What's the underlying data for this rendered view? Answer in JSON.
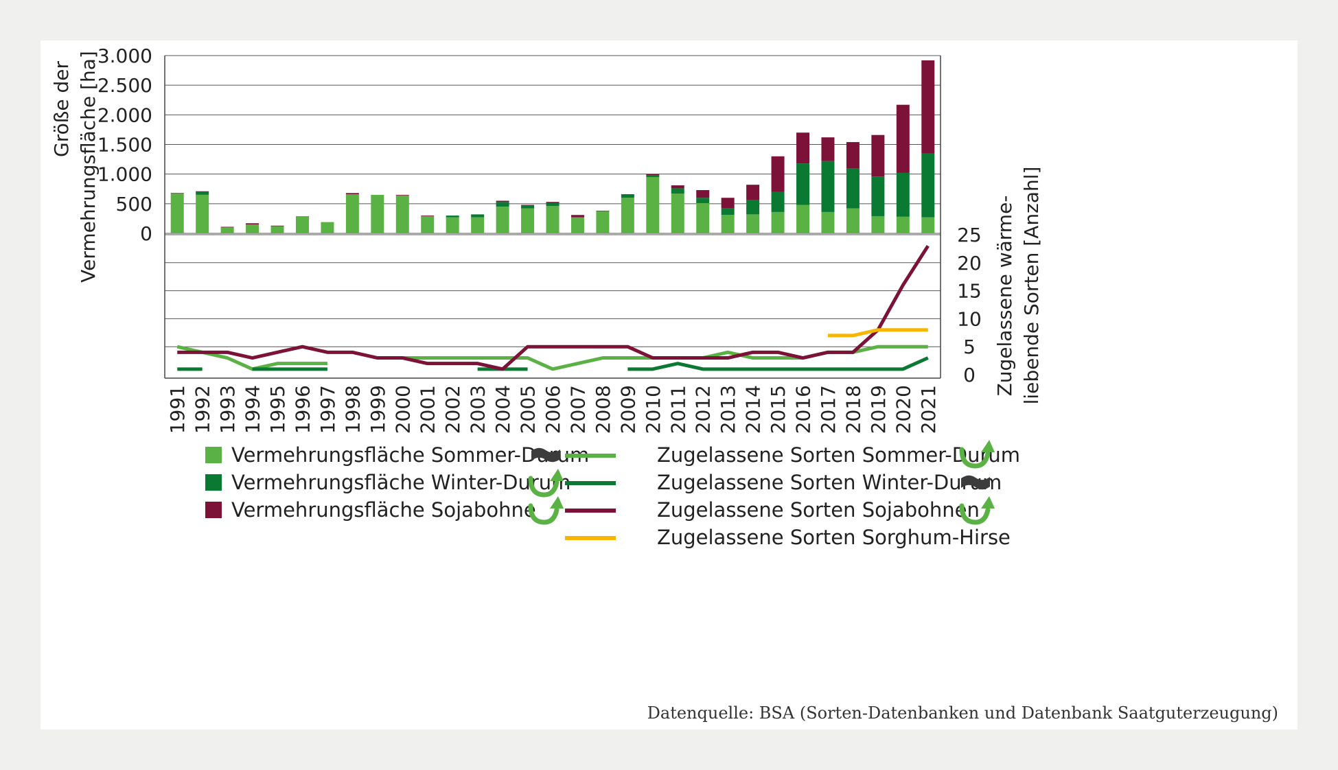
{
  "chart_data": {
    "type": "bar+line",
    "years": [
      "1991",
      "1992",
      "1993",
      "1994",
      "1995",
      "1996",
      "1997",
      "1998",
      "1999",
      "2000",
      "2001",
      "2002",
      "2003",
      "2004",
      "2005",
      "2006",
      "2007",
      "2008",
      "2009",
      "2010",
      "2011",
      "2012",
      "2013",
      "2014",
      "2015",
      "2016",
      "2017",
      "2018",
      "2019",
      "2020",
      "2021"
    ],
    "bars": {
      "ylabel_line1": "Größe der",
      "ylabel_line2": "Vermehrungsfläche [ha]",
      "ylim": [
        0,
        3000
      ],
      "ticks": [
        0,
        500,
        1000,
        1500,
        2000,
        2500,
        3000
      ],
      "tick_labels": [
        "0",
        "500",
        "1.000",
        "1.500",
        "2.000",
        "2.500",
        "3.000"
      ],
      "series": [
        {
          "name": "Vermehrungsfläche Sommer-Durum",
          "color": "#5bb244",
          "values": [
            670,
            650,
            100,
            150,
            120,
            290,
            190,
            660,
            650,
            640,
            290,
            270,
            270,
            450,
            420,
            460,
            270,
            370,
            600,
            950,
            670,
            510,
            310,
            320,
            360,
            480,
            360,
            420,
            290,
            280,
            270
          ]
        },
        {
          "name": "Vermehrungsfläche Winter-Durum",
          "color": "#0a7a32",
          "values": [
            0,
            50,
            0,
            0,
            0,
            0,
            0,
            0,
            0,
            0,
            0,
            30,
            50,
            80,
            50,
            50,
            0,
            0,
            50,
            30,
            90,
            90,
            110,
            240,
            340,
            700,
            860,
            680,
            670,
            740,
            1080
          ]
        },
        {
          "name": "Vermehrungsfläche Sojabohne",
          "color": "#7d1239",
          "values": [
            10,
            10,
            10,
            20,
            10,
            0,
            0,
            20,
            0,
            10,
            10,
            0,
            0,
            20,
            10,
            20,
            40,
            10,
            10,
            20,
            50,
            130,
            180,
            260,
            600,
            520,
            400,
            440,
            700,
            1150,
            1570
          ]
        }
      ]
    },
    "lines": {
      "ylabel_line1": "Zugelassene wärme-",
      "ylabel_line2": "liebende Sorten [Anzahl]",
      "ylim": [
        0,
        25
      ],
      "ticks": [
        0,
        5,
        10,
        15,
        20,
        25
      ],
      "series": [
        {
          "name": "Zugelassene Sorten Sommer-Durum",
          "color": "#5bb244",
          "values": [
            5,
            4,
            3,
            1,
            2,
            2,
            2,
            null,
            3,
            3,
            3,
            3,
            3,
            3,
            3,
            1,
            2,
            3,
            3,
            3,
            3,
            3,
            4,
            3,
            3,
            3,
            4,
            4,
            5,
            5,
            5
          ]
        },
        {
          "name": "Zugelassene Sorten Winter-Durum",
          "color": "#0a7a32",
          "values": [
            1,
            1,
            null,
            1,
            1,
            1,
            1,
            null,
            null,
            null,
            null,
            null,
            1,
            1,
            1,
            null,
            null,
            null,
            1,
            1,
            2,
            1,
            1,
            1,
            1,
            1,
            1,
            1,
            1,
            1,
            3
          ]
        },
        {
          "name": "Zugelassene Sorten Sojabohnen",
          "color": "#7d1239",
          "values": [
            4,
            4,
            4,
            3,
            4,
            5,
            4,
            4,
            3,
            3,
            2,
            2,
            2,
            1,
            5,
            5,
            5,
            5,
            5,
            3,
            3,
            3,
            3,
            4,
            4,
            3,
            4,
            4,
            8,
            16,
            23
          ]
        },
        {
          "name": "Zugelassene Sorten Sorghum-Hirse",
          "color": "#f7b500",
          "values": [
            null,
            null,
            null,
            null,
            null,
            null,
            null,
            null,
            null,
            null,
            null,
            null,
            null,
            null,
            null,
            null,
            null,
            null,
            null,
            null,
            null,
            null,
            null,
            null,
            null,
            null,
            7,
            7,
            8,
            8,
            8
          ]
        }
      ]
    }
  },
  "legend": {
    "left": [
      {
        "label": "Vermehrungsfläche Sommer-Durum",
        "color": "#5bb244",
        "trend": "tilde-icon"
      },
      {
        "label": "Vermehrungsfläche Winter-Durum",
        "color": "#0a7a32",
        "trend": "rising-arrow-icon"
      },
      {
        "label": "Vermehrungsfläche Sojabohne",
        "color": "#7d1239",
        "trend": "rising-arrow-icon"
      }
    ],
    "right": [
      {
        "label": "Zugelassene Sorten Sommer-Durum",
        "color": "#5bb244",
        "trend": "rising-arrow-icon"
      },
      {
        "label": "Zugelassene Sorten Winter-Durum",
        "color": "#0a7a32",
        "trend": "tilde-icon"
      },
      {
        "label": "Zugelassene Sorten Sojabohnen",
        "color": "#7d1239",
        "trend": "rising-arrow-icon"
      },
      {
        "label": "Zugelassene Sorten Sorghum-Hirse",
        "color": "#f7b500",
        "trend": "none"
      }
    ]
  },
  "source": "Datenquelle: BSA (Sorten-Datenbanken und Datenbank Saatguterzeugung)"
}
